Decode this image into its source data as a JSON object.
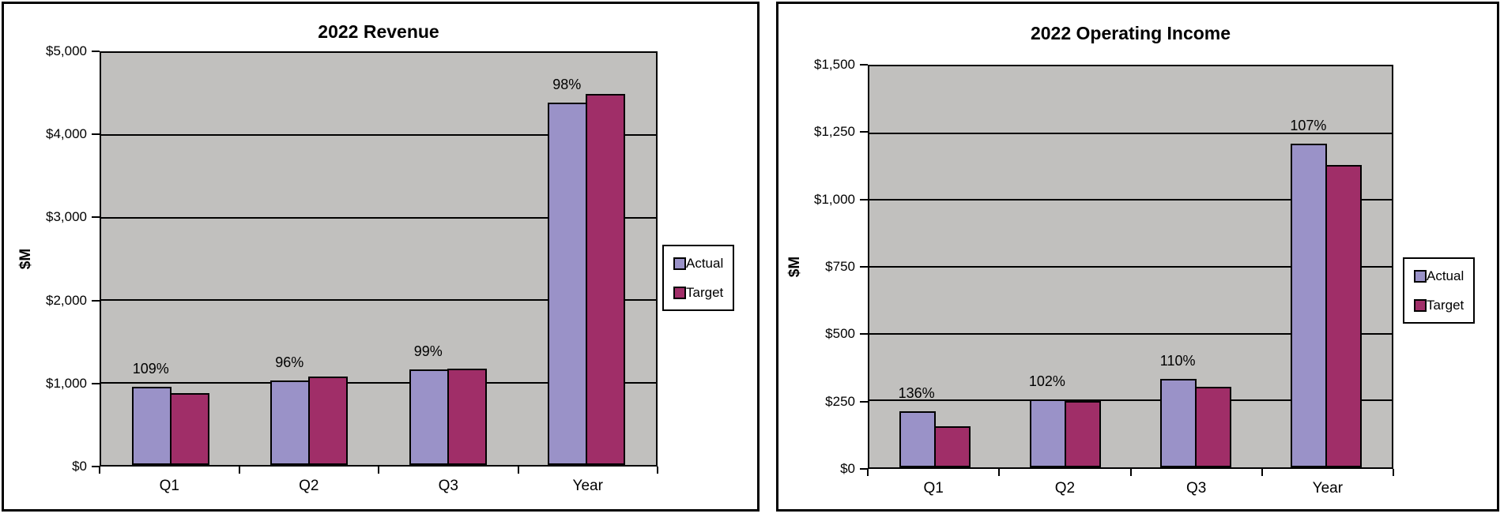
{
  "colors": {
    "actual": "#9A92C8",
    "target": "#A02E68",
    "plot_background": "#C1C0BE",
    "axis": "#000000",
    "chart_background": "#FFFFFF",
    "text": "#000000"
  },
  "legend": {
    "items": [
      {
        "label": "Actual",
        "color_key": "actual"
      },
      {
        "label": "Target",
        "color_key": "target"
      }
    ],
    "position": "right"
  },
  "chart_data": [
    {
      "type": "bar",
      "title": "2022 Revenue",
      "ylabel": "$M",
      "categories": [
        "Q1",
        "Q2",
        "Q3",
        "Year"
      ],
      "series": [
        {
          "name": "Actual",
          "values": [
            950,
            1025,
            1155,
            4400
          ]
        },
        {
          "name": "Target",
          "values": [
            870,
            1070,
            1170,
            4500
          ]
        }
      ],
      "bar_labels": [
        "109%",
        "96%",
        "99%",
        "98%"
      ],
      "bar_labels_position": "above-actual",
      "ylim": [
        0,
        5000
      ],
      "ytick_step": 1000,
      "yticks": [
        "$0",
        "$1,000",
        "$2,000",
        "$3,000",
        "$4,000",
        "$5,000"
      ],
      "grid": true,
      "legend_position": "right"
    },
    {
      "type": "bar",
      "title": "2022 Operating Income",
      "ylabel": "$M",
      "categories": [
        "Q1",
        "Q2",
        "Q3",
        "Year"
      ],
      "series": [
        {
          "name": "Actual",
          "values": [
            210,
            255,
            330,
            1210
          ]
        },
        {
          "name": "Target",
          "values": [
            154,
            249,
            300,
            1130
          ]
        }
      ],
      "bar_labels": [
        "136%",
        "102%",
        "110%",
        "107%"
      ],
      "bar_labels_position": "above-actual",
      "ylim": [
        0,
        1500
      ],
      "ytick_step": 250,
      "yticks": [
        "$0",
        "$250",
        "$500",
        "$750",
        "$1,000",
        "$1,250",
        "$1,500"
      ],
      "grid": true,
      "legend_position": "right"
    }
  ]
}
